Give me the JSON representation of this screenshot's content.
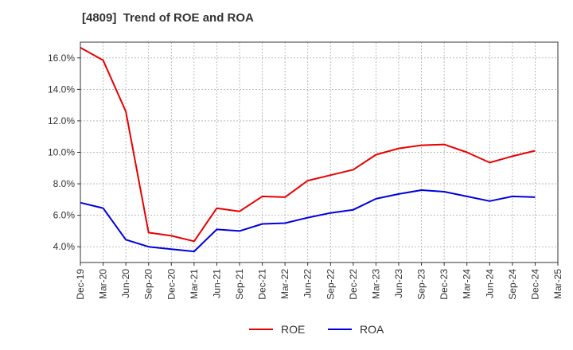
{
  "title": "[4809]  Trend of ROE and ROA",
  "colors": {
    "roe": "#e80000",
    "roa": "#0000dd",
    "grid": "#aaaaaa",
    "axis": "#333333"
  },
  "chart_data": {
    "type": "line",
    "title": "[4809]  Trend of ROE and ROA",
    "xlabel": "",
    "ylabel": "",
    "x": [
      "Dec-19",
      "Mar-20",
      "Jun-20",
      "Sep-20",
      "Dec-20",
      "Mar-21",
      "Jun-21",
      "Sep-21",
      "Dec-21",
      "Mar-22",
      "Jun-22",
      "Sep-22",
      "Dec-22",
      "Mar-23",
      "Jun-23",
      "Sep-23",
      "Dec-23",
      "Mar-24",
      "Jun-24",
      "Sep-24",
      "Dec-24",
      "Mar-25"
    ],
    "ylim": [
      3.0,
      17.0
    ],
    "yticks": [
      4,
      6,
      8,
      10,
      12,
      14,
      16
    ],
    "ytick_labels": [
      "4.0%",
      "6.0%",
      "8.0%",
      "10.0%",
      "12.0%",
      "14.0%",
      "16.0%"
    ],
    "grid": true,
    "legend": "bottom-center",
    "series": [
      {
        "name": "ROE",
        "color": "#e80000",
        "values": [
          16.65,
          15.85,
          12.6,
          4.9,
          4.7,
          4.35,
          6.45,
          6.25,
          7.2,
          7.15,
          8.2,
          8.55,
          8.9,
          9.85,
          10.25,
          10.45,
          10.5,
          10.0,
          9.35,
          9.75,
          10.1,
          null
        ]
      },
      {
        "name": "ROA",
        "color": "#0000dd",
        "values": [
          6.8,
          6.45,
          4.45,
          4.0,
          3.85,
          3.7,
          5.1,
          5.0,
          5.45,
          5.5,
          5.85,
          6.15,
          6.35,
          7.05,
          7.35,
          7.6,
          7.5,
          7.2,
          6.9,
          7.2,
          7.15,
          null
        ]
      }
    ]
  }
}
